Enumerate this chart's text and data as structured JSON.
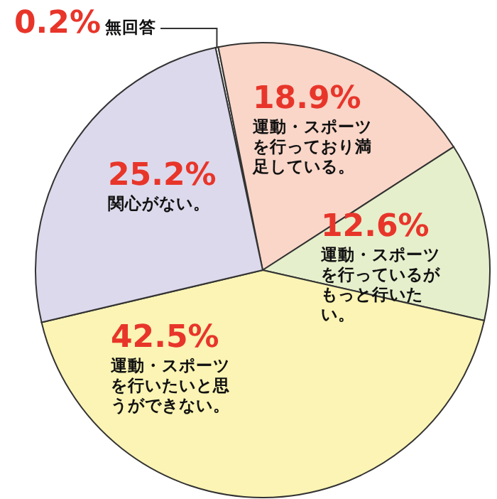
{
  "chart_data": {
    "type": "pie",
    "categories": [
      "無回答",
      "運動・スポーツを行っており満足している。",
      "運動・スポーツを行っているがもっと行いたい。",
      "運動・スポーツを行いたいと思うができない。",
      "関心がない。"
    ],
    "values": [
      0.2,
      18.9,
      12.6,
      42.5,
      25.2
    ],
    "value_labels": [
      "0.2%",
      "18.9%",
      "12.6%",
      "42.5%",
      "25.2%"
    ],
    "colors": [
      "#ffffff",
      "#f9d6c8",
      "#e6efcc",
      "#fbf4b4",
      "#ddd9ec"
    ],
    "legend": false
  }
}
